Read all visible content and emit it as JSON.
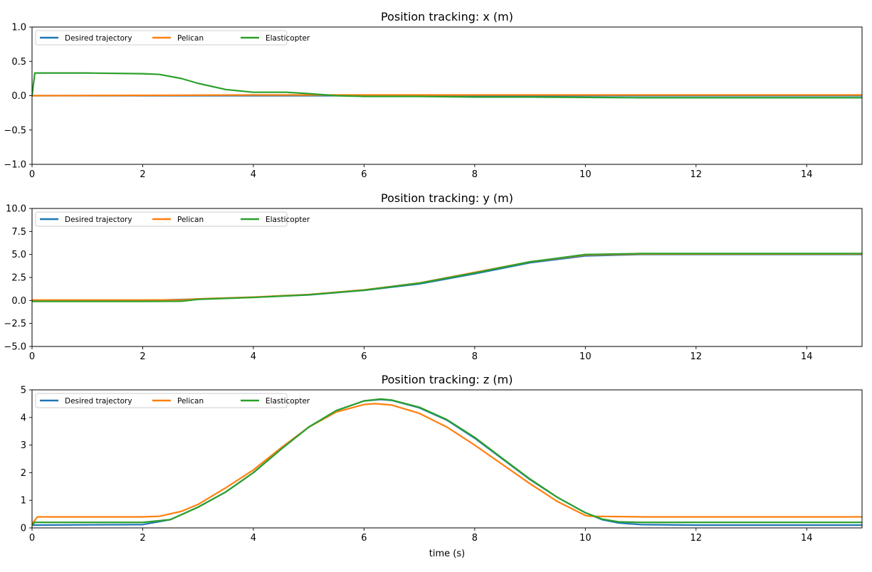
{
  "chart_data": [
    {
      "type": "line",
      "title": "Position tracking: x (m)",
      "xlabel": "",
      "ylabel": "",
      "xlim": [
        0,
        15
      ],
      "ylim": [
        -1.0,
        1.0
      ],
      "xticks": [
        "0",
        "2",
        "4",
        "6",
        "8",
        "10",
        "12",
        "14"
      ],
      "yticks": [
        "1.0",
        "0.5",
        "0.0",
        "−0.5",
        "−1.0"
      ],
      "grid": false,
      "legend_position": "top-left",
      "series": [
        {
          "name": "Desired trajectory",
          "color": "#1f77b4",
          "x": [
            0,
            15
          ],
          "y": [
            0.0,
            0.0
          ]
        },
        {
          "name": "Pelican",
          "color": "#ff7f0e",
          "x": [
            0,
            4,
            6,
            8,
            10,
            15
          ],
          "y": [
            0.0,
            0.01,
            0.01,
            0.01,
            0.01,
            0.01
          ]
        },
        {
          "name": "Elasticopter",
          "color": "#2ca02c",
          "x": [
            0,
            0.05,
            1.0,
            2.0,
            2.3,
            2.7,
            3.0,
            3.5,
            4.0,
            4.6,
            5.0,
            5.5,
            6.0,
            7.0,
            8.0,
            9.0,
            10.0,
            11.0,
            12.0,
            13.0,
            14.0,
            15.0
          ],
          "y": [
            0.0,
            0.33,
            0.33,
            0.32,
            0.31,
            0.25,
            0.18,
            0.09,
            0.05,
            0.05,
            0.03,
            0.0,
            -0.01,
            -0.01,
            -0.02,
            -0.02,
            -0.025,
            -0.03,
            -0.03,
            -0.03,
            -0.03,
            -0.03
          ]
        }
      ]
    },
    {
      "type": "line",
      "title": "Position tracking: y (m)",
      "xlabel": "",
      "ylabel": "",
      "xlim": [
        0,
        15
      ],
      "ylim": [
        -5.0,
        10.0
      ],
      "xticks": [
        "0",
        "2",
        "4",
        "6",
        "8",
        "10",
        "12",
        "14"
      ],
      "yticks": [
        "10.0",
        "7.5",
        "5.0",
        "2.5",
        "0.0",
        "−2.5",
        "−5.0"
      ],
      "grid": false,
      "legend_position": "top-left",
      "series": [
        {
          "name": "Desired trajectory",
          "color": "#1f77b4",
          "x": [
            0,
            2.0,
            3.0,
            4.0,
            5.0,
            6.0,
            7.0,
            8.0,
            9.0,
            10.0,
            11.0,
            12.0,
            15.0
          ],
          "y": [
            0.0,
            0.0,
            0.15,
            0.35,
            0.6,
            1.1,
            1.8,
            2.9,
            4.1,
            4.85,
            5.0,
            5.0,
            5.0
          ]
        },
        {
          "name": "Pelican",
          "color": "#ff7f0e",
          "x": [
            0,
            2.0,
            2.7,
            3.0,
            4.0,
            5.0,
            6.0,
            7.0,
            8.0,
            9.0,
            10.0,
            11.0,
            12.0,
            15.0
          ],
          "y": [
            0.05,
            0.05,
            0.07,
            0.17,
            0.37,
            0.65,
            1.15,
            1.9,
            3.05,
            4.2,
            4.95,
            5.05,
            5.05,
            5.05
          ]
        },
        {
          "name": "Elasticopter",
          "color": "#2ca02c",
          "x": [
            0,
            2.0,
            2.7,
            3.0,
            4.0,
            5.0,
            6.0,
            7.0,
            8.0,
            9.0,
            10.0,
            11.0,
            12.0,
            15.0
          ],
          "y": [
            -0.1,
            -0.1,
            -0.08,
            0.12,
            0.33,
            0.62,
            1.12,
            1.88,
            3.0,
            4.2,
            5.0,
            5.1,
            5.1,
            5.1
          ]
        }
      ]
    },
    {
      "type": "line",
      "title": "Position tracking: z (m)",
      "xlabel": "time (s)",
      "ylabel": "",
      "xlim": [
        0,
        15
      ],
      "ylim": [
        0,
        5
      ],
      "xticks": [
        "0",
        "2",
        "4",
        "6",
        "8",
        "10",
        "12",
        "14"
      ],
      "yticks": [
        "5",
        "4",
        "3",
        "2",
        "1",
        "0"
      ],
      "grid": false,
      "legend_position": "top-left",
      "series": [
        {
          "name": "Desired trajectory",
          "color": "#1f77b4",
          "x": [
            0,
            2.0,
            2.5,
            3.0,
            3.5,
            4.0,
            4.5,
            5.0,
            5.5,
            6.0,
            6.3,
            6.5,
            7.0,
            7.5,
            8.0,
            8.5,
            9.0,
            9.5,
            10.0,
            10.3,
            10.6,
            11.0,
            12.0,
            15.0
          ],
          "y": [
            0.1,
            0.12,
            0.3,
            0.75,
            1.3,
            2.0,
            2.85,
            3.65,
            4.25,
            4.6,
            4.65,
            4.62,
            4.35,
            3.9,
            3.25,
            2.5,
            1.75,
            1.1,
            0.55,
            0.3,
            0.18,
            0.12,
            0.1,
            0.1
          ]
        },
        {
          "name": "Pelican",
          "color": "#ff7f0e",
          "x": [
            0,
            0.1,
            2.0,
            2.3,
            2.7,
            3.0,
            3.5,
            4.0,
            4.5,
            5.0,
            5.5,
            6.0,
            6.2,
            6.5,
            7.0,
            7.5,
            8.0,
            8.5,
            9.0,
            9.5,
            10.0,
            10.1,
            11.0,
            12.0,
            15.0
          ],
          "y": [
            0.15,
            0.4,
            0.4,
            0.42,
            0.6,
            0.85,
            1.45,
            2.1,
            2.9,
            3.65,
            4.2,
            4.47,
            4.5,
            4.45,
            4.15,
            3.65,
            3.0,
            2.3,
            1.6,
            0.95,
            0.45,
            0.42,
            0.4,
            0.4,
            0.4
          ]
        },
        {
          "name": "Elasticopter",
          "color": "#2ca02c",
          "x": [
            0,
            0.05,
            2.0,
            2.5,
            3.0,
            3.5,
            4.0,
            4.5,
            5.0,
            5.5,
            6.0,
            6.3,
            6.5,
            7.0,
            7.5,
            8.0,
            8.5,
            9.0,
            9.5,
            10.0,
            10.3,
            10.6,
            11.0,
            12.0,
            15.0
          ],
          "y": [
            0.1,
            0.2,
            0.2,
            0.3,
            0.75,
            1.3,
            2.0,
            2.85,
            3.65,
            4.25,
            4.6,
            4.67,
            4.63,
            4.37,
            3.92,
            3.28,
            2.52,
            1.77,
            1.1,
            0.55,
            0.32,
            0.22,
            0.2,
            0.2,
            0.2
          ]
        }
      ]
    }
  ]
}
